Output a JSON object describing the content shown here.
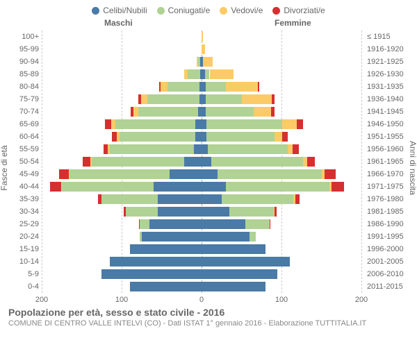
{
  "legend": {
    "items": [
      {
        "label": "Celibi/Nubili",
        "color": "#4a7aa6"
      },
      {
        "label": "Coniugati/e",
        "color": "#b0d294"
      },
      {
        "label": "Vedovi/e",
        "color": "#fccb67"
      },
      {
        "label": "Divorziati/e",
        "color": "#d62f2f"
      }
    ]
  },
  "gender_headers": {
    "male": "Maschi",
    "female": "Femmine"
  },
  "axes": {
    "left_title": "Fasce di età",
    "right_title": "Anni di nascita",
    "x_max": 200,
    "x_ticks_left": [
      200,
      100,
      0
    ],
    "x_ticks_right": [
      100,
      200
    ]
  },
  "colors": {
    "celibi": "#4a7aa6",
    "coniugati": "#b0d294",
    "vedovi": "#fccb67",
    "divorziati": "#d62f2f",
    "grid": "#cccccc",
    "center": "#aaaaaa"
  },
  "rows": [
    {
      "age": "100+",
      "year": "≤ 1915",
      "m": {
        "c": 0,
        "k": 0,
        "v": 0,
        "d": 0
      },
      "f": {
        "c": 0,
        "k": 0,
        "v": 2,
        "d": 0
      }
    },
    {
      "age": "95-99",
      "year": "1916-1920",
      "m": {
        "c": 0,
        "k": 0,
        "v": 0,
        "d": 0
      },
      "f": {
        "c": 0,
        "k": 0,
        "v": 4,
        "d": 0
      }
    },
    {
      "age": "90-94",
      "year": "1921-1925",
      "m": {
        "c": 2,
        "k": 2,
        "v": 2,
        "d": 0
      },
      "f": {
        "c": 2,
        "k": 0,
        "v": 12,
        "d": 0
      }
    },
    {
      "age": "85-89",
      "year": "1926-1930",
      "m": {
        "c": 2,
        "k": 15,
        "v": 5,
        "d": 0
      },
      "f": {
        "c": 4,
        "k": 6,
        "v": 30,
        "d": 0
      }
    },
    {
      "age": "80-84",
      "year": "1931-1935",
      "m": {
        "c": 3,
        "k": 40,
        "v": 8,
        "d": 2
      },
      "f": {
        "c": 5,
        "k": 25,
        "v": 40,
        "d": 2
      }
    },
    {
      "age": "75-79",
      "year": "1936-1940",
      "m": {
        "c": 3,
        "k": 65,
        "v": 8,
        "d": 3
      },
      "f": {
        "c": 5,
        "k": 45,
        "v": 38,
        "d": 3
      }
    },
    {
      "age": "70-74",
      "year": "1941-1945",
      "m": {
        "c": 4,
        "k": 75,
        "v": 6,
        "d": 4
      },
      "f": {
        "c": 5,
        "k": 60,
        "v": 22,
        "d": 4
      }
    },
    {
      "age": "65-69",
      "year": "1946-1950",
      "m": {
        "c": 8,
        "k": 100,
        "v": 5,
        "d": 8
      },
      "f": {
        "c": 6,
        "k": 95,
        "v": 18,
        "d": 8
      }
    },
    {
      "age": "60-64",
      "year": "1951-1955",
      "m": {
        "c": 8,
        "k": 95,
        "v": 3,
        "d": 6
      },
      "f": {
        "c": 6,
        "k": 85,
        "v": 10,
        "d": 7
      }
    },
    {
      "age": "55-59",
      "year": "1956-1960",
      "m": {
        "c": 10,
        "k": 105,
        "v": 2,
        "d": 6
      },
      "f": {
        "c": 8,
        "k": 100,
        "v": 6,
        "d": 8
      }
    },
    {
      "age": "50-54",
      "year": "1961-1965",
      "m": {
        "c": 22,
        "k": 115,
        "v": 2,
        "d": 10
      },
      "f": {
        "c": 12,
        "k": 115,
        "v": 5,
        "d": 10
      }
    },
    {
      "age": "45-49",
      "year": "1966-1970",
      "m": {
        "c": 40,
        "k": 125,
        "v": 1,
        "d": 12
      },
      "f": {
        "c": 20,
        "k": 130,
        "v": 4,
        "d": 14
      }
    },
    {
      "age": "40-44",
      "year": "1971-1975",
      "m": {
        "c": 60,
        "k": 115,
        "v": 1,
        "d": 14
      },
      "f": {
        "c": 30,
        "k": 130,
        "v": 3,
        "d": 15
      }
    },
    {
      "age": "35-39",
      "year": "1976-1980",
      "m": {
        "c": 55,
        "k": 70,
        "v": 0,
        "d": 5
      },
      "f": {
        "c": 25,
        "k": 90,
        "v": 2,
        "d": 6
      }
    },
    {
      "age": "30-34",
      "year": "1981-1985",
      "m": {
        "c": 55,
        "k": 40,
        "v": 0,
        "d": 2
      },
      "f": {
        "c": 35,
        "k": 55,
        "v": 1,
        "d": 3
      }
    },
    {
      "age": "25-29",
      "year": "1986-1990",
      "m": {
        "c": 65,
        "k": 12,
        "v": 0,
        "d": 1
      },
      "f": {
        "c": 55,
        "k": 30,
        "v": 0,
        "d": 1
      }
    },
    {
      "age": "20-24",
      "year": "1991-1995",
      "m": {
        "c": 75,
        "k": 2,
        "v": 0,
        "d": 0
      },
      "f": {
        "c": 60,
        "k": 8,
        "v": 0,
        "d": 0
      }
    },
    {
      "age": "15-19",
      "year": "1996-2000",
      "m": {
        "c": 90,
        "k": 0,
        "v": 0,
        "d": 0
      },
      "f": {
        "c": 80,
        "k": 0,
        "v": 0,
        "d": 0
      }
    },
    {
      "age": "10-14",
      "year": "2001-2005",
      "m": {
        "c": 115,
        "k": 0,
        "v": 0,
        "d": 0
      },
      "f": {
        "c": 110,
        "k": 0,
        "v": 0,
        "d": 0
      }
    },
    {
      "age": "5-9",
      "year": "2006-2010",
      "m": {
        "c": 125,
        "k": 0,
        "v": 0,
        "d": 0
      },
      "f": {
        "c": 95,
        "k": 0,
        "v": 0,
        "d": 0
      }
    },
    {
      "age": "0-4",
      "year": "2011-2015",
      "m": {
        "c": 90,
        "k": 0,
        "v": 0,
        "d": 0
      },
      "f": {
        "c": 80,
        "k": 0,
        "v": 0,
        "d": 0
      }
    }
  ],
  "footer": {
    "title": "Popolazione per età, sesso e stato civile - 2016",
    "subtitle": "COMUNE DI CENTRO VALLE INTELVI (CO) - Dati ISTAT 1° gennaio 2016 - Elaborazione TUTTITALIA.IT"
  }
}
